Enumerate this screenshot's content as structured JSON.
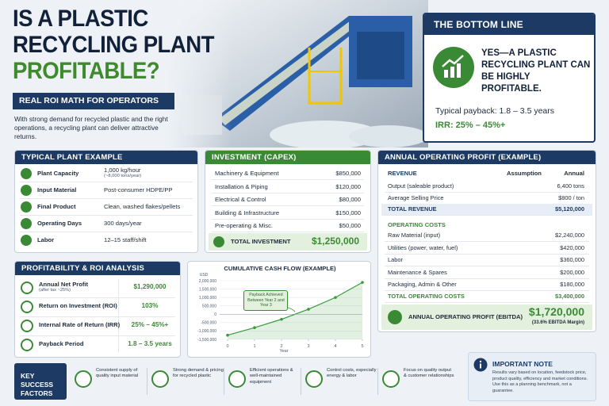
{
  "header": {
    "title_lines": [
      "IS A PLASTIC",
      "RECYCLING PLANT",
      "PROFITABLE?"
    ],
    "tagline": "REAL ROI MATH FOR OPERATORS",
    "intro": "With strong demand for recycled plastic and the right operations, a recycling plant can deliver attractive returns."
  },
  "bottom_line": {
    "title": "THE BOTTOM LINE",
    "headline": "YES—A PLASTIC RECYCLING PLANT CAN BE HIGHLY PROFITABLE.",
    "payback": "Typical payback: 1.8 – 3.5 years",
    "irr": "IRR: 25% – 45%+"
  },
  "plant_example": {
    "title": "TYPICAL PLANT EXAMPLE",
    "rows": [
      {
        "label": "Plant Capacity",
        "value": "1,000 kg/hour",
        "note": "(~8,000 tons/year)"
      },
      {
        "label": "Input Material",
        "value": "Post-consumer HDPE/PP"
      },
      {
        "label": "Final Product",
        "value": "Clean, washed flakes/pellets"
      },
      {
        "label": "Operating Days",
        "value": "300 days/year"
      },
      {
        "label": "Labor",
        "value": "12–15 staff/shift"
      }
    ]
  },
  "capex": {
    "title": "INVESTMENT (CAPEX)",
    "rows": [
      {
        "label": "Machinery & Equipment",
        "value": "$850,000"
      },
      {
        "label": "Installation & Piping",
        "value": "$120,000"
      },
      {
        "label": "Electrical & Control",
        "value": "$80,000"
      },
      {
        "label": "Building & Infrastructure",
        "value": "$150,000"
      },
      {
        "label": "Pre-operating & Misc.",
        "value": "$50,000"
      }
    ],
    "total_label": "TOTAL INVESTMENT",
    "total_value": "$1,250,000"
  },
  "operating_profit": {
    "title": "ANNUAL OPERATING PROFIT (EXAMPLE)",
    "revenue_heading": "REVENUE",
    "assumption_heading": "Assumption",
    "annual_heading": "Annual",
    "revenue_rows": [
      {
        "label": "Output (saleable product)",
        "value": "6,400 tons"
      },
      {
        "label": "Average Selling Price",
        "value": "$800 / ton"
      }
    ],
    "total_revenue": {
      "label": "TOTAL REVENUE",
      "value": "$5,120,000"
    },
    "costs_heading": "OPERATING COSTS",
    "cost_rows": [
      {
        "label": "Raw Material (input)",
        "value": "$2,240,000"
      },
      {
        "label": "Utilities (power, water, fuel)",
        "value": "$420,000"
      },
      {
        "label": "Labor",
        "value": "$360,000"
      },
      {
        "label": "Maintenance & Spares",
        "value": "$200,000"
      },
      {
        "label": "Packaging, Admin & Other",
        "value": "$180,000"
      }
    ],
    "total_costs": {
      "label": "TOTAL OPERATING COSTS",
      "value": "$3,400,000"
    },
    "ebitda_label": "ANNUAL OPERATING PROFIT (EBITDA)",
    "ebitda_value": "$1,720,000",
    "ebitda_margin": "(33.6% EBITDA Margin)"
  },
  "roi": {
    "title": "PROFITABILITY & ROI ANALYSIS",
    "rows": [
      {
        "label": "Annual Net Profit",
        "note": "(after tax ~25%)",
        "value": "$1,290,000"
      },
      {
        "label": "Return on Investment (ROI)",
        "value": "103%"
      },
      {
        "label": "Internal Rate of Return (IRR)",
        "value": "25% – 45%+"
      },
      {
        "label": "Payback Period",
        "value": "1.8 – 3.5 years"
      }
    ]
  },
  "chart_data": {
    "type": "line",
    "title": "CUMULATIVE CASH FLOW (EXAMPLE)",
    "ylabel": "USD",
    "xlabel": "Year",
    "annotation": "Payback Achieved Between Year 2 and Year 3",
    "x": [
      0,
      1,
      2,
      3,
      4,
      5
    ],
    "values": [
      -1250000,
      -800000,
      -300000,
      300000,
      1000000,
      1900000
    ],
    "color": "#3a9a3e",
    "xlim": [
      0,
      5
    ],
    "xticks": [
      0,
      1,
      2,
      3,
      4,
      5
    ],
    "ylim": [
      -1500000,
      2000000
    ],
    "yticks": [
      {
        "value": -1500000,
        "label": "-1,500,000"
      },
      {
        "value": -1000000,
        "label": "-1,000,000"
      },
      {
        "value": -500000,
        "label": "-500,000"
      },
      0,
      {
        "value": 500000,
        "label": "500,000"
      },
      {
        "value": 1000000,
        "label": "1,000,000"
      },
      {
        "value": 1500000,
        "label": "1,500,000"
      },
      {
        "value": 2000000,
        "label": "2,000,000"
      }
    ],
    "grid": true
  },
  "success_factors": {
    "title": "KEY SUCCESS FACTORS",
    "items": [
      "Consistent supply of quality input material",
      "Strong demand & pricing for recycled plastic",
      "Efficient operations & well-maintained equipment",
      "Control costs, especially energy & labor",
      "Focus on quality output & customer relationships"
    ]
  },
  "note": {
    "title": "IMPORTANT NOTE",
    "text": "Results vary based on location, feedstock price, product quality, efficiency and market conditions. Use this as a planning benchmark, not a guarantee."
  }
}
